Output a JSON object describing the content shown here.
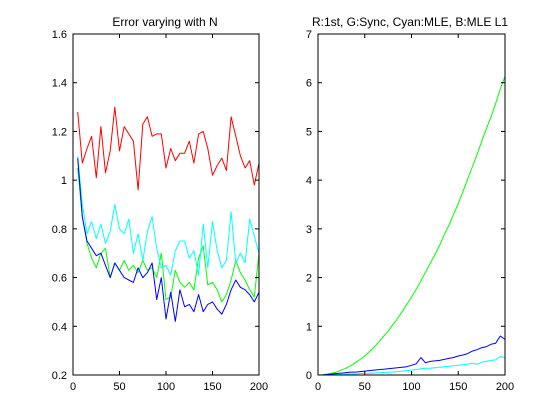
{
  "chart_data": [
    {
      "type": "line",
      "title": "Error varying with N",
      "xlabel": "",
      "ylabel": "",
      "xlim": [
        0,
        200
      ],
      "ylim": [
        0.2,
        1.6
      ],
      "xticks": [
        0,
        50,
        100,
        150,
        200
      ],
      "yticks": [
        0.2,
        0.4,
        0.6,
        0.8,
        1,
        1.2,
        1.4,
        1.6
      ],
      "xtick_labels": [
        "0",
        "50",
        "100",
        "150",
        "200"
      ],
      "ytick_labels": [
        "0.2",
        "0.4",
        "0.6",
        "0.8",
        "1",
        "1.2",
        "1.4",
        "1.6"
      ],
      "grid": false,
      "x": [
        5,
        10,
        15,
        20,
        25,
        30,
        35,
        40,
        45,
        50,
        55,
        60,
        65,
        70,
        75,
        80,
        85,
        90,
        95,
        100,
        105,
        110,
        115,
        120,
        125,
        130,
        135,
        140,
        145,
        150,
        155,
        160,
        165,
        170,
        175,
        180,
        185,
        190,
        195,
        200
      ],
      "series": [
        {
          "color": "#ff0000",
          "values": [
            1.28,
            1.07,
            1.13,
            1.18,
            1.01,
            1.22,
            1.03,
            1.12,
            1.3,
            1.12,
            1.22,
            1.19,
            1.16,
            0.96,
            1.23,
            1.26,
            1.18,
            1.19,
            1.19,
            1.05,
            1.13,
            1.08,
            1.11,
            1.11,
            1.16,
            1.07,
            1.19,
            1.2,
            1.13,
            1.02,
            1.06,
            1.09,
            1.04,
            1.26,
            1.18,
            1.1,
            1.05,
            1.08,
            0.98,
            1.07
          ]
        },
        {
          "color": "#00ff00",
          "values": [
            1.05,
            0.85,
            0.74,
            0.68,
            0.64,
            0.7,
            0.72,
            0.6,
            0.66,
            0.63,
            0.67,
            0.63,
            0.65,
            0.62,
            0.67,
            0.63,
            0.64,
            0.6,
            0.7,
            0.51,
            0.52,
            0.63,
            0.58,
            0.56,
            0.58,
            0.55,
            0.68,
            0.73,
            0.57,
            0.58,
            0.55,
            0.5,
            0.53,
            0.59,
            0.67,
            0.62,
            0.59,
            0.55,
            0.52,
            0.7
          ]
        },
        {
          "color": "#00ffff",
          "values": [
            1.1,
            0.9,
            0.78,
            0.83,
            0.76,
            0.82,
            0.74,
            0.79,
            0.9,
            0.8,
            0.78,
            0.84,
            0.7,
            0.78,
            0.67,
            0.79,
            0.85,
            0.72,
            0.64,
            0.65,
            0.61,
            0.71,
            0.75,
            0.75,
            0.68,
            0.71,
            0.61,
            0.82,
            0.64,
            0.83,
            0.71,
            0.64,
            0.67,
            0.87,
            0.66,
            0.7,
            0.66,
            0.84,
            0.77,
            0.7
          ]
        },
        {
          "color": "#0000ff",
          "values": [
            1.09,
            0.85,
            0.75,
            0.72,
            0.69,
            0.7,
            0.65,
            0.6,
            0.66,
            0.63,
            0.6,
            0.59,
            0.58,
            0.64,
            0.6,
            0.62,
            0.66,
            0.51,
            0.6,
            0.43,
            0.54,
            0.42,
            0.55,
            0.48,
            0.49,
            0.46,
            0.53,
            0.46,
            0.49,
            0.5,
            0.47,
            0.45,
            0.49,
            0.55,
            0.59,
            0.56,
            0.55,
            0.53,
            0.5,
            0.54
          ]
        }
      ]
    },
    {
      "type": "line",
      "title": "R:1st, G:Sync, Cyan:MLE, B:MLE L1",
      "xlabel": "",
      "ylabel": "",
      "xlim": [
        0,
        200
      ],
      "ylim": [
        0,
        7
      ],
      "xticks": [
        0,
        50,
        100,
        150,
        200
      ],
      "yticks": [
        0,
        1,
        2,
        3,
        4,
        5,
        6,
        7
      ],
      "xtick_labels": [
        "0",
        "50",
        "100",
        "150",
        "200"
      ],
      "ytick_labels": [
        "0",
        "1",
        "2",
        "3",
        "4",
        "5",
        "6",
        "7"
      ],
      "grid": false,
      "x": [
        5,
        10,
        15,
        20,
        25,
        30,
        35,
        40,
        45,
        50,
        55,
        60,
        65,
        70,
        75,
        80,
        85,
        90,
        95,
        100,
        105,
        110,
        115,
        120,
        125,
        130,
        135,
        140,
        145,
        150,
        155,
        160,
        165,
        170,
        175,
        180,
        185,
        190,
        195,
        200
      ],
      "series": [
        {
          "color": "#ff0000",
          "values": [
            0,
            0,
            0,
            0,
            0,
            0,
            0,
            0,
            0,
            0,
            0,
            0,
            0,
            0,
            0,
            0,
            0,
            0,
            0,
            0,
            0,
            0,
            0,
            0,
            0,
            0,
            0,
            0,
            0,
            0,
            0,
            0,
            0,
            0,
            0,
            0,
            0,
            0,
            0,
            0
          ]
        },
        {
          "color": "#00ff00",
          "values": [
            0.01,
            0.02,
            0.04,
            0.06,
            0.1,
            0.14,
            0.19,
            0.25,
            0.32,
            0.39,
            0.48,
            0.57,
            0.68,
            0.79,
            0.9,
            1.03,
            1.16,
            1.3,
            1.45,
            1.6,
            1.76,
            1.93,
            2.11,
            2.29,
            2.47,
            2.66,
            2.88,
            3.07,
            3.3,
            3.52,
            3.76,
            4.02,
            4.27,
            4.52,
            4.79,
            5.05,
            5.3,
            5.57,
            5.87,
            6.13
          ]
        },
        {
          "color": "#00ffff",
          "values": [
            0.0,
            0.0,
            0.01,
            0.01,
            0.01,
            0.02,
            0.02,
            0.02,
            0.03,
            0.03,
            0.04,
            0.04,
            0.05,
            0.05,
            0.06,
            0.06,
            0.07,
            0.08,
            0.09,
            0.1,
            0.11,
            0.13,
            0.14,
            0.14,
            0.15,
            0.16,
            0.17,
            0.18,
            0.19,
            0.2,
            0.21,
            0.22,
            0.24,
            0.22,
            0.26,
            0.28,
            0.3,
            0.31,
            0.38,
            0.35
          ]
        },
        {
          "color": "#0000ff",
          "values": [
            0.0,
            0.01,
            0.02,
            0.03,
            0.04,
            0.05,
            0.06,
            0.06,
            0.07,
            0.08,
            0.09,
            0.1,
            0.11,
            0.12,
            0.13,
            0.14,
            0.15,
            0.16,
            0.17,
            0.2,
            0.23,
            0.36,
            0.25,
            0.28,
            0.29,
            0.3,
            0.32,
            0.34,
            0.36,
            0.39,
            0.41,
            0.44,
            0.49,
            0.52,
            0.56,
            0.58,
            0.63,
            0.65,
            0.8,
            0.73
          ]
        }
      ]
    }
  ]
}
